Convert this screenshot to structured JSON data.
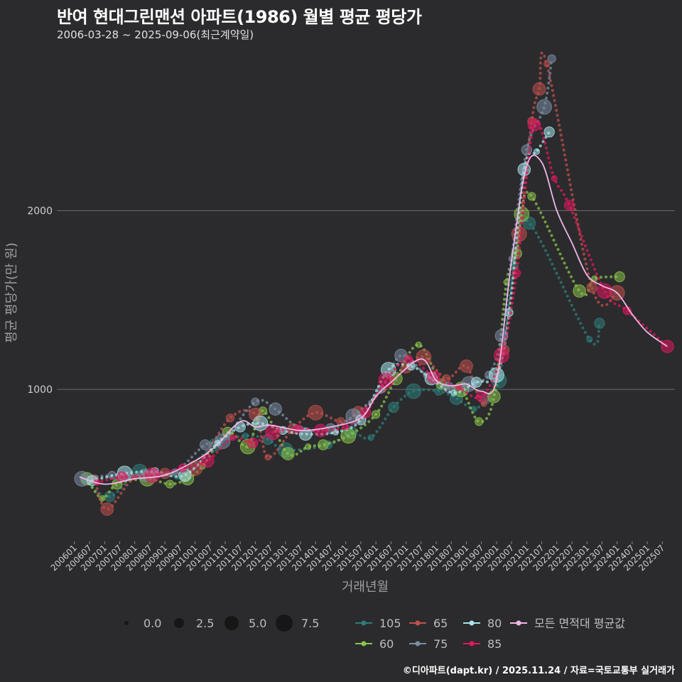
{
  "title": "반여 현대그린맨션 아파트(1986) 월별 평균 평당가",
  "subtitle": "2006-03-28 ~ 2025-09-06(최근계약일)",
  "footer": "©디아파트(dapt.kr) / 2025.11.24 / 자료=국토교통부 실거래가",
  "chart_data": {
    "type": "scatter",
    "title": "반여 현대그린맨션 아파트(1986) 월별 평균 평당가",
    "xlabel": "거래년월",
    "ylabel": "평균 평당가(만 원)",
    "ylim": [
      150,
      2900
    ],
    "xlim": [
      "2005-06",
      "2025-12"
    ],
    "y_ticks": [
      1000,
      2000
    ],
    "x_ticks": [
      "200601",
      "200607",
      "200701",
      "200707",
      "200801",
      "200807",
      "200901",
      "200907",
      "201001",
      "201007",
      "201101",
      "201107",
      "201201",
      "201207",
      "201301",
      "201307",
      "201401",
      "201407",
      "201501",
      "201507",
      "201601",
      "201607",
      "201701",
      "201707",
      "201801",
      "201807",
      "201901",
      "201907",
      "202001",
      "202007",
      "202101",
      "202107",
      "202201",
      "202207",
      "202301",
      "202307",
      "202401",
      "202407",
      "202501",
      "202507"
    ],
    "size_legend": {
      "title": "",
      "values": [
        "0.0",
        "2.5",
        "5.0",
        "7.5"
      ]
    },
    "series": [
      {
        "name": "105",
        "color": "#2e7d7a",
        "points": [
          [
            "2006-05",
            490
          ],
          [
            "2007-03",
            400
          ],
          [
            "2008-03",
            540
          ],
          [
            "2009-06",
            520
          ],
          [
            "2010-09",
            690
          ],
          [
            "2011-09",
            740
          ],
          [
            "2012-06",
            720
          ],
          [
            "2013-01",
            660
          ],
          [
            "2014-06",
            690
          ],
          [
            "2015-03",
            760
          ],
          [
            "2015-11",
            730
          ],
          [
            "2016-08",
            900
          ],
          [
            "2017-04",
            990
          ],
          [
            "2018-02",
            990
          ],
          [
            "2018-09",
            950
          ],
          [
            "2019-04",
            890
          ],
          [
            "2019-09",
            950
          ],
          [
            "2020-02",
            1050
          ],
          [
            "2020-08",
            1690
          ],
          [
            "2021-02",
            1930
          ],
          [
            "2023-02",
            1280
          ],
          [
            "2023-06",
            1370
          ]
        ]
      },
      {
        "name": "60",
        "color": "#8bc34a",
        "points": [
          [
            "2006-06",
            500
          ],
          [
            "2006-12",
            390
          ],
          [
            "2007-06",
            470
          ],
          [
            "2008-06",
            500
          ],
          [
            "2009-03",
            470
          ],
          [
            "2009-10",
            500
          ],
          [
            "2010-04",
            570
          ],
          [
            "2011-02",
            760
          ],
          [
            "2011-10",
            680
          ],
          [
            "2012-04",
            880
          ],
          [
            "2013-02",
            640
          ],
          [
            "2013-10",
            680
          ],
          [
            "2014-04",
            690
          ],
          [
            "2015-02",
            740
          ],
          [
            "2016-01",
            860
          ],
          [
            "2016-09",
            1060
          ],
          [
            "2017-06",
            1250
          ],
          [
            "2018-03",
            1030
          ],
          [
            "2018-11",
            1000
          ],
          [
            "2019-06",
            820
          ],
          [
            "2019-12",
            960
          ],
          [
            "2020-05",
            1600
          ],
          [
            "2020-09",
            1760
          ],
          [
            "2020-11",
            1980
          ],
          [
            "2021-03",
            2080
          ],
          [
            "2022-10",
            1550
          ],
          [
            "2023-04",
            1620
          ],
          [
            "2024-02",
            1630
          ]
        ]
      },
      {
        "name": "65",
        "color": "#c0504d",
        "points": [
          [
            "2006-09",
            500
          ],
          [
            "2007-02",
            330
          ],
          [
            "2008-01",
            510
          ],
          [
            "2009-01",
            530
          ],
          [
            "2010-01",
            560
          ],
          [
            "2011-03",
            840
          ],
          [
            "2012-01",
            860
          ],
          [
            "2012-06",
            620
          ],
          [
            "2013-04",
            780
          ],
          [
            "2014-01",
            870
          ],
          [
            "2014-11",
            820
          ],
          [
            "2015-06",
            870
          ],
          [
            "2016-04",
            1000
          ],
          [
            "2017-01",
            1120
          ],
          [
            "2017-08",
            1180
          ],
          [
            "2018-05",
            1060
          ],
          [
            "2019-01",
            1130
          ],
          [
            "2019-08",
            920
          ],
          [
            "2020-04",
            1220
          ],
          [
            "2020-10",
            1870
          ],
          [
            "2021-03",
            2500
          ],
          [
            "2021-06",
            2680
          ],
          [
            "2021-09",
            2820
          ],
          [
            "2023-03",
            1570
          ],
          [
            "2024-01",
            1540
          ]
        ]
      },
      {
        "name": "75",
        "color": "#7a8ca3",
        "points": [
          [
            "2006-04",
            500
          ],
          [
            "2007-04",
            520
          ],
          [
            "2008-05",
            520
          ],
          [
            "2009-05",
            540
          ],
          [
            "2010-05",
            690
          ],
          [
            "2010-12",
            710
          ],
          [
            "2012-01",
            930
          ],
          [
            "2012-09",
            890
          ],
          [
            "2013-07",
            780
          ],
          [
            "2014-07",
            780
          ],
          [
            "2015-04",
            850
          ],
          [
            "2016-03",
            1000
          ],
          [
            "2016-11",
            1190
          ],
          [
            "2017-09",
            1080
          ],
          [
            "2018-06",
            1010
          ],
          [
            "2019-02",
            1030
          ],
          [
            "2019-10",
            1080
          ],
          [
            "2020-03",
            1300
          ],
          [
            "2020-07",
            1730
          ],
          [
            "2021-01",
            2340
          ],
          [
            "2021-08",
            2580
          ],
          [
            "2021-11",
            2850
          ]
        ]
      },
      {
        "name": "80",
        "color": "#a8e4ea",
        "points": [
          [
            "2006-08",
            490
          ],
          [
            "2007-09",
            530
          ],
          [
            "2008-09",
            540
          ],
          [
            "2009-09",
            520
          ],
          [
            "2010-10",
            700
          ],
          [
            "2011-07",
            790
          ],
          [
            "2012-03",
            810
          ],
          [
            "2012-12",
            770
          ],
          [
            "2013-09",
            750
          ],
          [
            "2014-09",
            760
          ],
          [
            "2015-07",
            830
          ],
          [
            "2016-06",
            1110
          ],
          [
            "2017-03",
            1130
          ],
          [
            "2017-11",
            1060
          ],
          [
            "2018-08",
            980
          ],
          [
            "2019-05",
            1040
          ],
          [
            "2020-01",
            1080
          ],
          [
            "2020-06",
            1430
          ],
          [
            "2020-12",
            2230
          ],
          [
            "2021-05",
            2330
          ],
          [
            "2021-10",
            2440
          ]
        ]
      },
      {
        "name": "85",
        "color": "#e0185f",
        "points": [
          [
            "2006-10",
            480
          ],
          [
            "2007-08",
            510
          ],
          [
            "2008-08",
            520
          ],
          [
            "2009-08",
            560
          ],
          [
            "2010-06",
            600
          ],
          [
            "2011-04",
            730
          ],
          [
            "2011-12",
            700
          ],
          [
            "2012-08",
            760
          ],
          [
            "2013-06",
            780
          ],
          [
            "2014-03",
            770
          ],
          [
            "2015-01",
            790
          ],
          [
            "2015-09",
            870
          ],
          [
            "2016-05",
            1050
          ],
          [
            "2017-02",
            1170
          ],
          [
            "2017-12",
            1070
          ],
          [
            "2018-10",
            1010
          ],
          [
            "2019-07",
            960
          ],
          [
            "2020-03",
            1190
          ],
          [
            "2020-09",
            1650
          ],
          [
            "2021-04",
            2480
          ],
          [
            "2021-12",
            2180
          ],
          [
            "2022-06",
            2030
          ],
          [
            "2023-08",
            1550
          ],
          [
            "2024-05",
            1440
          ],
          [
            "2025-09",
            1240
          ]
        ]
      }
    ],
    "average_line": {
      "name": "모든 면적대 평균값",
      "color": "#f0b8e8",
      "points": [
        [
          "2006-03",
          510
        ],
        [
          "2007-01",
          470
        ],
        [
          "2008-01",
          500
        ],
        [
          "2009-01",
          520
        ],
        [
          "2010-01",
          600
        ],
        [
          "2010-09",
          680
        ],
        [
          "2011-07",
          820
        ],
        [
          "2012-01",
          790
        ],
        [
          "2012-07",
          800
        ],
        [
          "2013-07",
          770
        ],
        [
          "2014-07",
          790
        ],
        [
          "2015-07",
          840
        ],
        [
          "2016-01",
          960
        ],
        [
          "2016-07",
          1040
        ],
        [
          "2017-07",
          1170
        ],
        [
          "2018-01",
          1050
        ],
        [
          "2018-07",
          1020
        ],
        [
          "2019-01",
          1030
        ],
        [
          "2019-07",
          990
        ],
        [
          "2020-01",
          1050
        ],
        [
          "2020-07",
          1720
        ],
        [
          "2021-01",
          2250
        ],
        [
          "2021-07",
          2270
        ],
        [
          "2022-01",
          2000
        ],
        [
          "2022-07",
          1820
        ],
        [
          "2023-01",
          1640
        ],
        [
          "2023-07",
          1580
        ],
        [
          "2024-01",
          1540
        ],
        [
          "2024-07",
          1420
        ],
        [
          "2025-01",
          1320
        ],
        [
          "2025-09",
          1240
        ]
      ]
    }
  }
}
